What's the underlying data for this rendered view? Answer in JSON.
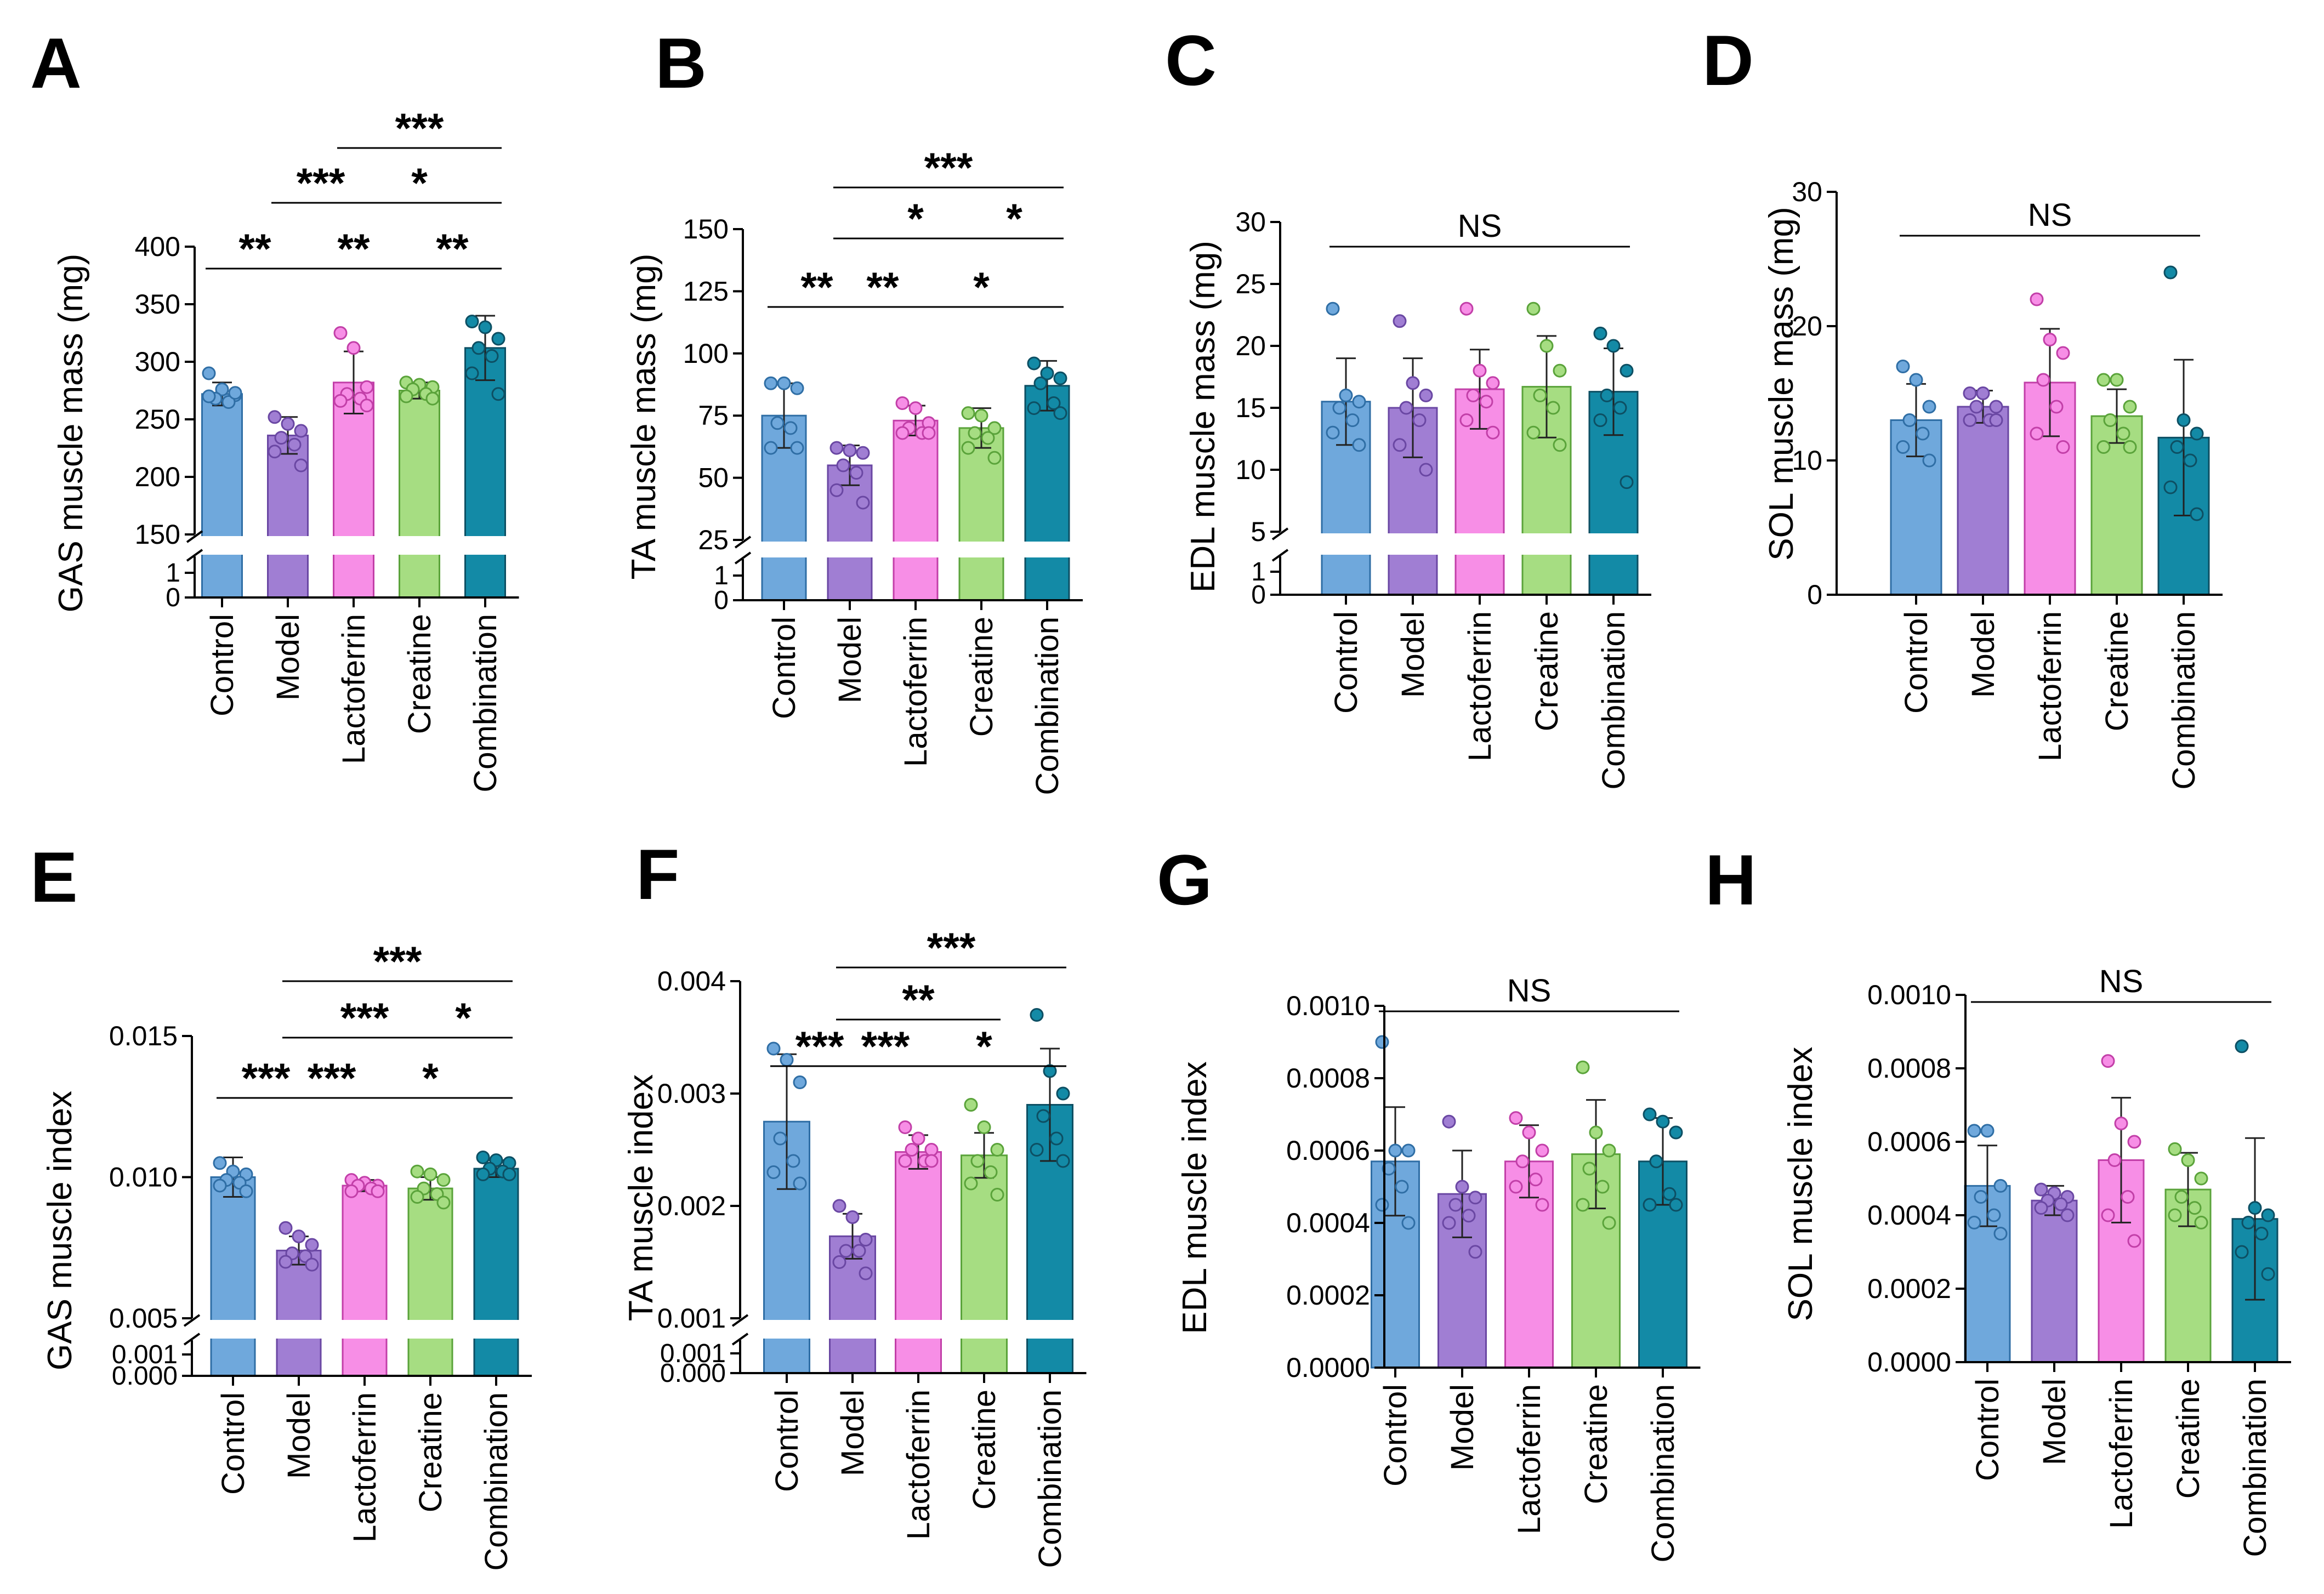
{
  "groups": [
    "Control",
    "Model",
    "Lactoferrin",
    "Creatine",
    "Combination"
  ],
  "colors": {
    "fills": [
      "#6fa8dc",
      "#a07ed3",
      "#f78ee6",
      "#a6dd82",
      "#138aa6"
    ],
    "strokes": [
      "#2f6ea5",
      "#6a47a3",
      "#c23fa8",
      "#5aa33a",
      "#0d4f63"
    ]
  },
  "chart_data": [
    {
      "type": "bar",
      "panel": "A",
      "ylabel": "GAS muscle mass (mg)",
      "categories": [
        "Control",
        "Model",
        "Lactoferrin",
        "Creatine",
        "Combination"
      ],
      "axis": {
        "broken": true,
        "lower_ticks": [
          "0",
          "1"
        ],
        "upper": [
          150,
          400
        ],
        "upper_ticks": [
          150,
          200,
          250,
          300,
          350,
          400
        ],
        "upper_labels": [
          "150",
          "200",
          "250",
          "300",
          "350",
          "400"
        ]
      },
      "values": [
        272,
        236,
        282,
        275,
        312
      ],
      "errors": [
        10,
        16,
        27,
        7,
        28
      ],
      "points": [
        [
          290,
          276,
          271,
          268,
          265,
          270,
          273
        ],
        [
          252,
          246,
          240,
          234,
          228,
          222,
          210
        ],
        [
          325,
          312,
          278,
          272,
          268,
          266,
          262
        ],
        [
          282,
          280,
          278,
          276,
          272,
          270,
          268
        ],
        [
          335,
          330,
          320,
          312,
          305,
          290,
          272
        ]
      ],
      "annotations": [
        {
          "from": 2,
          "to": 4,
          "text": "***"
        },
        {
          "from": 1,
          "to": 2,
          "text": "***"
        },
        {
          "from": 2,
          "to": 4,
          "text": "*"
        },
        {
          "from": 0,
          "to": 1,
          "text": "**"
        },
        {
          "from": 1,
          "to": 3,
          "text": "**"
        },
        {
          "from": 3,
          "to": 4,
          "text": "**"
        }
      ]
    },
    {
      "type": "bar",
      "panel": "B",
      "ylabel": "TA muscle mass (mg)",
      "categories": [
        "Control",
        "Model",
        "Lactoferrin",
        "Creatine",
        "Combination"
      ],
      "axis": {
        "broken": true,
        "lower_ticks": [
          "0",
          "1"
        ],
        "upper": [
          25,
          150
        ],
        "upper_ticks": [
          25,
          50,
          75,
          100,
          125,
          150
        ],
        "upper_labels": [
          "25",
          "50",
          "75",
          "100",
          "125",
          "150"
        ]
      },
      "values": [
        75,
        55,
        73,
        70,
        87
      ],
      "errors": [
        13,
        8,
        6,
        8,
        10
      ],
      "points": [
        [
          88,
          88,
          86,
          72,
          70,
          62,
          62
        ],
        [
          62,
          61,
          60,
          55,
          52,
          45,
          40
        ],
        [
          80,
          78,
          72,
          70,
          68,
          68,
          68
        ],
        [
          76,
          75,
          70,
          68,
          66,
          62,
          58
        ],
        [
          96,
          92,
          90,
          88,
          80,
          78,
          76
        ]
      ],
      "annotations": [
        {
          "from": 1,
          "to": 4,
          "text": "***"
        },
        {
          "from": 1,
          "to": 3,
          "text": "*"
        },
        {
          "from": 3,
          "to": 4,
          "text": "*"
        },
        {
          "from": 0,
          "to": 1,
          "text": "**"
        },
        {
          "from": 1,
          "to": 2,
          "text": "**"
        },
        {
          "from": 2,
          "to": 4,
          "text": "*"
        }
      ]
    },
    {
      "type": "bar",
      "panel": "C",
      "ylabel": "EDL muscle mass (mg)",
      "categories": [
        "Control",
        "Model",
        "Lactoferrin",
        "Creatine",
        "Combination"
      ],
      "axis": {
        "broken": true,
        "lower_ticks": [
          "0",
          "1"
        ],
        "upper": [
          5,
          30
        ],
        "upper_ticks": [
          5,
          10,
          15,
          20,
          25,
          30
        ],
        "upper_labels": [
          "5",
          "10",
          "15",
          "20",
          "25",
          "30"
        ]
      },
      "values": [
        15.5,
        15,
        16.5,
        16.7,
        16.3
      ],
      "errors": [
        3.5,
        4,
        3.2,
        4.1,
        3.5
      ],
      "points": [
        [
          23,
          16,
          15.5,
          15,
          14,
          13,
          12
        ],
        [
          22,
          17,
          16,
          15,
          14,
          12,
          10
        ],
        [
          23,
          18,
          17,
          16,
          15.5,
          14,
          13
        ],
        [
          23,
          20,
          18,
          16,
          15,
          13,
          12
        ],
        [
          21,
          20,
          18,
          16,
          15,
          14,
          9
        ]
      ],
      "annotations": [
        {
          "from": 0,
          "to": 4,
          "text": "NS"
        }
      ]
    },
    {
      "type": "bar",
      "panel": "D",
      "ylabel": "SOL muscle mass (mg)",
      "categories": [
        "Control",
        "Model",
        "Lactoferrin",
        "Creatine",
        "Combination"
      ],
      "axis": {
        "broken": false,
        "range": [
          0,
          30
        ],
        "ticks": [
          0,
          10,
          20,
          30
        ],
        "tick_labels": [
          "0",
          "10",
          "20",
          "30"
        ]
      },
      "values": [
        13,
        14,
        15.8,
        13.3,
        11.7
      ],
      "errors": [
        2.7,
        1.2,
        4,
        2,
        5.8
      ],
      "points": [
        [
          17,
          16,
          14,
          13,
          12,
          11,
          10
        ],
        [
          15,
          15,
          14,
          14,
          13,
          13,
          13
        ],
        [
          22,
          19,
          18,
          16,
          14,
          12,
          11
        ],
        [
          16,
          16,
          14,
          13,
          12,
          11,
          11
        ],
        [
          24,
          13,
          12,
          11,
          10,
          8,
          6
        ]
      ],
      "annotations": [
        {
          "from": 0,
          "to": 4,
          "text": "NS"
        }
      ]
    },
    {
      "type": "bar",
      "panel": "E",
      "ylabel": "GAS muscle index",
      "categories": [
        "Control",
        "Model",
        "Lactoferrin",
        "Creatine",
        "Combination"
      ],
      "axis": {
        "broken": true,
        "lower_ticks": [
          "0.000",
          "0.001"
        ],
        "upper": [
          0.005,
          0.015
        ],
        "upper_ticks": [
          0.005,
          0.01,
          0.015
        ],
        "upper_labels": [
          "0.005",
          "0.010",
          "0.015"
        ]
      },
      "values": [
        0.01,
        0.0074,
        0.0097,
        0.0096,
        0.0103
      ],
      "errors": [
        0.0007,
        0.0005,
        0.0002,
        0.0004,
        0.0003
      ],
      "points": [
        [
          0.0105,
          0.0102,
          0.0101,
          0.0099,
          0.0098,
          0.0097,
          0.0095
        ],
        [
          0.0082,
          0.0079,
          0.0076,
          0.0073,
          0.0072,
          0.007,
          0.0069
        ],
        [
          0.0099,
          0.0098,
          0.0097,
          0.0097,
          0.0096,
          0.0095,
          0.0095
        ],
        [
          0.0102,
          0.0101,
          0.0099,
          0.0096,
          0.0094,
          0.0093,
          0.0091
        ],
        [
          0.0107,
          0.0106,
          0.0105,
          0.0103,
          0.0102,
          0.0101,
          0.0101
        ]
      ],
      "annotations": [
        {
          "from": 1,
          "to": 4,
          "text": "***"
        },
        {
          "from": 1,
          "to": 3,
          "text": "***"
        },
        {
          "from": 3,
          "to": 4,
          "text": "*"
        },
        {
          "from": 0,
          "to": 1,
          "text": "***"
        },
        {
          "from": 1,
          "to": 2,
          "text": "***"
        },
        {
          "from": 2,
          "to": 4,
          "text": "*"
        }
      ]
    },
    {
      "type": "bar",
      "panel": "F",
      "ylabel": "TA muscle index",
      "categories": [
        "Control",
        "Model",
        "Lactoferrin",
        "Creatine",
        "Combination"
      ],
      "axis": {
        "broken": true,
        "lower_ticks": [
          "0.000",
          "0.001"
        ],
        "upper": [
          0.001,
          0.004
        ],
        "upper_ticks": [
          0.001,
          0.002,
          0.003,
          0.004
        ],
        "upper_labels": [
          "0.001",
          "0.002",
          "0.003",
          "0.004"
        ]
      },
      "values": [
        0.00275,
        0.00173,
        0.00248,
        0.00245,
        0.0029
      ],
      "errors": [
        0.0006,
        0.0002,
        0.00015,
        0.0002,
        0.0005
      ],
      "points": [
        [
          0.0034,
          0.0033,
          0.0031,
          0.0026,
          0.0024,
          0.0023,
          0.0022
        ],
        [
          0.002,
          0.0019,
          0.0017,
          0.0016,
          0.0016,
          0.0015,
          0.0014
        ],
        [
          0.0027,
          0.0026,
          0.0025,
          0.0025,
          0.0024,
          0.0024,
          0.0024
        ],
        [
          0.0029,
          0.0027,
          0.0025,
          0.0024,
          0.0023,
          0.0022,
          0.0021
        ],
        [
          0.0037,
          0.0032,
          0.003,
          0.0028,
          0.0026,
          0.0025,
          0.0024
        ]
      ],
      "annotations": [
        {
          "from": 1,
          "to": 4,
          "text": "***"
        },
        {
          "from": 1,
          "to": 3,
          "text": "**"
        },
        {
          "from": 0,
          "to": 1,
          "text": "***"
        },
        {
          "from": 1,
          "to": 2,
          "text": "***"
        },
        {
          "from": 2,
          "to": 4,
          "text": "*"
        }
      ]
    },
    {
      "type": "bar",
      "panel": "G",
      "ylabel": "EDL muscle index",
      "categories": [
        "Control",
        "Model",
        "Lactoferrin",
        "Creatine",
        "Combination"
      ],
      "axis": {
        "broken": false,
        "range": [
          0,
          0.001
        ],
        "ticks": [
          0,
          0.0002,
          0.0004,
          0.0006,
          0.0008,
          0.001
        ],
        "tick_labels": [
          "0.0000",
          "0.0002",
          "0.0004",
          "0.0006",
          "0.0008",
          "0.0010"
        ]
      },
      "values": [
        0.00057,
        0.00048,
        0.00057,
        0.00059,
        0.00057
      ],
      "errors": [
        0.00015,
        0.00012,
        0.0001,
        0.00015,
        0.00012
      ],
      "points": [
        [
          0.0009,
          0.0006,
          0.0006,
          0.00055,
          0.0005,
          0.00045,
          0.0004
        ],
        [
          0.00068,
          0.0005,
          0.00047,
          0.00045,
          0.00042,
          0.0004,
          0.00032
        ],
        [
          0.00069,
          0.00065,
          0.0006,
          0.00057,
          0.00052,
          0.0005,
          0.00045
        ],
        [
          0.00083,
          0.00065,
          0.0006,
          0.00055,
          0.0005,
          0.00045,
          0.0004
        ],
        [
          0.0007,
          0.00068,
          0.00065,
          0.00057,
          0.00048,
          0.00045,
          0.00045
        ]
      ],
      "annotations": [
        {
          "from": 0,
          "to": 4,
          "text": "NS"
        }
      ]
    },
    {
      "type": "bar",
      "panel": "H",
      "ylabel": "SOL muscle index",
      "categories": [
        "Control",
        "Model",
        "Lactoferrin",
        "Creatine",
        "Combination"
      ],
      "axis": {
        "broken": false,
        "range": [
          0,
          0.001
        ],
        "ticks": [
          0,
          0.0002,
          0.0004,
          0.0006,
          0.0008,
          0.001
        ],
        "tick_labels": [
          "0.0000",
          "0.0002",
          "0.0004",
          "0.0006",
          "0.0008",
          "0.0010"
        ]
      },
      "values": [
        0.00048,
        0.00044,
        0.00055,
        0.00047,
        0.00039
      ],
      "errors": [
        0.00011,
        4e-05,
        0.00017,
        0.0001,
        0.00022
      ],
      "points": [
        [
          0.00063,
          0.00063,
          0.00048,
          0.00045,
          0.0004,
          0.00038,
          0.00035
        ],
        [
          0.00047,
          0.00046,
          0.00045,
          0.00044,
          0.00043,
          0.00042,
          0.0004
        ],
        [
          0.00082,
          0.00065,
          0.0006,
          0.00055,
          0.00045,
          0.0004,
          0.00033
        ],
        [
          0.00058,
          0.00055,
          0.0005,
          0.00045,
          0.00042,
          0.0004,
          0.00038
        ],
        [
          0.00086,
          0.00042,
          0.0004,
          0.00038,
          0.00035,
          0.0003,
          0.00024
        ]
      ],
      "annotations": [
        {
          "from": 0,
          "to": 4,
          "text": "NS"
        }
      ]
    }
  ]
}
